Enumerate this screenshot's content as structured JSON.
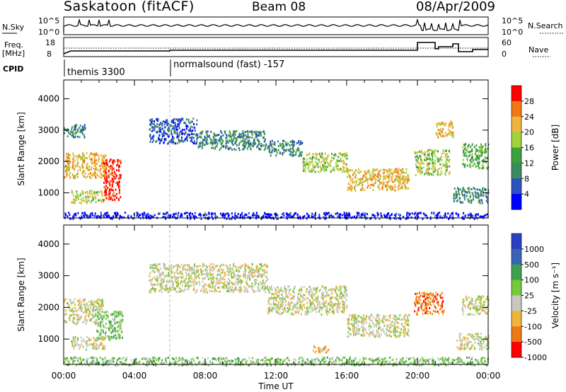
{
  "header": {
    "title": "Saskatoon (fitACF)",
    "beam": "Beam 08",
    "date": "08/Apr/2009"
  },
  "status_panels": {
    "nsky_label": "N.Sky",
    "nsky_ticks": [
      "10^5",
      "10^0"
    ],
    "nsearch_label": "N.Search",
    "nsearch_ticks": [
      "10^5",
      "10^0"
    ],
    "freq_label": "Freq.",
    "freq_unit": "[MHz]",
    "freq_ticks": [
      "18",
      "8"
    ],
    "nave_label": "Nave",
    "nave_ticks": [
      "60",
      "0"
    ],
    "cpid_label": "CPID",
    "cpid_modes": [
      "themis 3300",
      "normalsound (fast) -157"
    ]
  },
  "colors": {
    "power": [
      "#0000ff",
      "#2a52c0",
      "#3c8a60",
      "#3ca03c",
      "#a0d23c",
      "#f0b43c",
      "#f07814",
      "#ff0000"
    ],
    "velocity": [
      "#2a40c0",
      "#3c64b4",
      "#3ca050",
      "#78c83c",
      "#c8c8c0",
      "#f0b43c",
      "#f07814",
      "#ff0000"
    ]
  },
  "chart_data": [
    {
      "type": "heatmap",
      "panel": "power",
      "ylabel": "Slant Range [km]",
      "ylim": [
        200,
        4600
      ],
      "yticks": [
        "1000",
        "2000",
        "3000",
        "4000"
      ],
      "xlim": [
        0,
        24
      ],
      "colorbar_label": "Power [dB]",
      "colorbar_ticks": [
        "4",
        "8",
        "12",
        "16",
        "20",
        "24",
        "28"
      ],
      "bands": [
        {
          "t0": 0.0,
          "t1": 2.4,
          "r0": 1500,
          "r1": 2300,
          "level": 5
        },
        {
          "t0": 0.0,
          "t1": 1.2,
          "r0": 2800,
          "r1": 3200,
          "level": 2
        },
        {
          "t0": 0.4,
          "t1": 2.2,
          "r0": 700,
          "r1": 1100,
          "level": 4
        },
        {
          "t0": 2.2,
          "t1": 3.2,
          "r0": 800,
          "r1": 2100,
          "level": 7
        },
        {
          "t0": 4.8,
          "t1": 7.5,
          "r0": 2600,
          "r1": 3400,
          "level": 1
        },
        {
          "t0": 7.5,
          "t1": 11.5,
          "r0": 2400,
          "r1": 3000,
          "level": 2
        },
        {
          "t0": 11.5,
          "t1": 13.5,
          "r0": 2200,
          "r1": 2700,
          "level": 2
        },
        {
          "t0": 13.5,
          "t1": 16.0,
          "r0": 1700,
          "r1": 2300,
          "level": 4
        },
        {
          "t0": 16.0,
          "t1": 19.5,
          "r0": 1100,
          "r1": 1800,
          "level": 5
        },
        {
          "t0": 19.8,
          "t1": 21.8,
          "r0": 1600,
          "r1": 2400,
          "level": 4
        },
        {
          "t0": 21.0,
          "t1": 22.0,
          "r0": 2800,
          "r1": 3300,
          "level": 5
        },
        {
          "t0": 22.0,
          "t1": 24.0,
          "r0": 700,
          "r1": 1200,
          "level": 2
        },
        {
          "t0": 22.5,
          "t1": 24.0,
          "r0": 1800,
          "r1": 2600,
          "level": 3
        },
        {
          "t0": 0.0,
          "t1": 24.0,
          "r0": 200,
          "r1": 400,
          "level": 0
        }
      ]
    },
    {
      "type": "heatmap",
      "panel": "velocity",
      "ylabel": "Slant Range [km]",
      "ylim": [
        200,
        4600
      ],
      "yticks": [
        "1000",
        "2000",
        "3000",
        "4000"
      ],
      "xlabel": "Time UT",
      "xlim": [
        0,
        24
      ],
      "xticks": [
        "00:00",
        "04:00",
        "08:00",
        "12:00",
        "16:00",
        "20:00",
        "00:00"
      ],
      "colorbar_label": "Velocity [m s⁻¹]",
      "colorbar_ticks": [
        "1000",
        "500",
        "100",
        "25",
        "-25",
        "-100",
        "-500",
        "-1000"
      ],
      "bands": [
        {
          "t0": 0.0,
          "t1": 2.2,
          "r0": 1500,
          "r1": 2300,
          "level": 4
        },
        {
          "t0": 1.8,
          "t1": 3.3,
          "r0": 1000,
          "r1": 1900,
          "level": 3
        },
        {
          "t0": 0.4,
          "t1": 2.4,
          "r0": 700,
          "r1": 1100,
          "level": 4
        },
        {
          "t0": 4.8,
          "t1": 11.5,
          "r0": 2500,
          "r1": 3400,
          "level": 4
        },
        {
          "t0": 11.5,
          "t1": 16.0,
          "r0": 1800,
          "r1": 2700,
          "level": 4
        },
        {
          "t0": 16.0,
          "t1": 19.5,
          "r0": 1100,
          "r1": 1800,
          "level": 4
        },
        {
          "t0": 19.8,
          "t1": 21.5,
          "r0": 1800,
          "r1": 2500,
          "level": 6
        },
        {
          "t0": 14.0,
          "t1": 15.0,
          "r0": 600,
          "r1": 800,
          "level": 5
        },
        {
          "t0": 22.2,
          "t1": 24.0,
          "r0": 700,
          "r1": 1200,
          "level": 4
        },
        {
          "t0": 22.5,
          "t1": 24.0,
          "r0": 1800,
          "r1": 2400,
          "level": 4
        },
        {
          "t0": 0.0,
          "t1": 24.0,
          "r0": 200,
          "r1": 450,
          "level": 3
        }
      ]
    }
  ]
}
